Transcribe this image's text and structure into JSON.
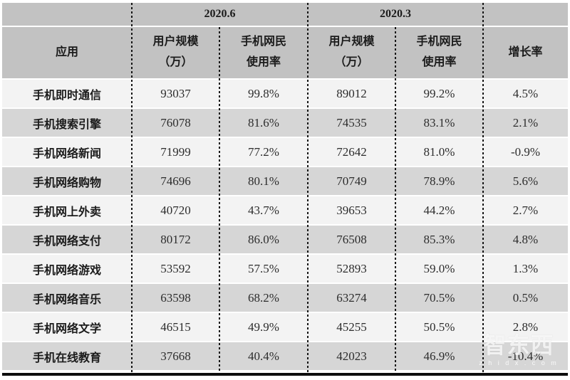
{
  "chart_data": {
    "type": "table",
    "period_groups": [
      "2020.6",
      "2020.3"
    ],
    "column_headers": {
      "app": "应用",
      "user_scale": [
        "用户规模",
        "（万）"
      ],
      "usage_rate": [
        "手机网民",
        "使用率"
      ],
      "growth": "增长率"
    },
    "rows": [
      [
        "手机即时通信",
        "93037",
        "99.8%",
        "89012",
        "99.2%",
        "4.5%"
      ],
      [
        "手机搜索引擎",
        "76078",
        "81.6%",
        "74535",
        "83.1%",
        "2.1%"
      ],
      [
        "手机网络新闻",
        "71999",
        "77.2%",
        "72642",
        "81.0%",
        "-0.9%"
      ],
      [
        "手机网络购物",
        "74696",
        "80.1%",
        "70749",
        "78.9%",
        "5.6%"
      ],
      [
        "手机网上外卖",
        "40720",
        "43.7%",
        "39653",
        "44.2%",
        "2.7%"
      ],
      [
        "手机网络支付",
        "80172",
        "86.0%",
        "76508",
        "85.3%",
        "4.8%"
      ],
      [
        "手机网络游戏",
        "53592",
        "57.5%",
        "52893",
        "59.0%",
        "1.3%"
      ],
      [
        "手机网络音乐",
        "63598",
        "68.2%",
        "63274",
        "70.5%",
        "0.5%"
      ],
      [
        "手机网络文学",
        "46515",
        "49.9%",
        "45255",
        "50.5%",
        "2.8%"
      ],
      [
        "手机在线教育",
        "37668",
        "40.4%",
        "42023",
        "46.9%",
        "-10.4%"
      ]
    ],
    "layout": {
      "row_striping": [
        "light",
        "gray"
      ],
      "column_dividers": "black-dotted",
      "bottom_border": true
    }
  },
  "watermark": {
    "logo": "智东西",
    "domain": "z h i d x . c o m"
  },
  "colors": {
    "header_bg": "#c2c2c2",
    "row_gray": "#d6d6d6",
    "row_light": "#f3f3f3",
    "divider": "#161616",
    "bottom_border": "#0d0d0d"
  }
}
